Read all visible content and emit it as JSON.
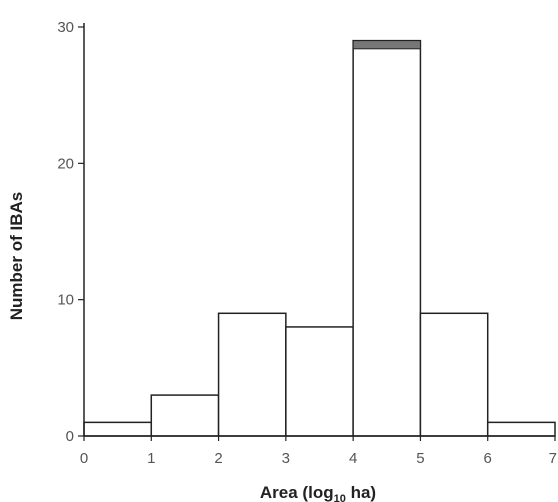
{
  "chart_data": {
    "type": "bar",
    "histogram": true,
    "bin_edges": [
      0,
      1,
      2,
      3,
      4,
      5,
      6,
      7
    ],
    "values": [
      1,
      3,
      9,
      8,
      29,
      9,
      1
    ],
    "stacked_top": {
      "bin": 4,
      "value": 0.6
    },
    "xlabel": {
      "prefix": "Area (log",
      "sub": "10",
      "suffix": " ha)"
    },
    "ylabel": "Number of IBAs",
    "xlim": [
      0,
      7
    ],
    "ylim": [
      0,
      30
    ],
    "xticks": [
      "0",
      "1",
      "2",
      "3",
      "4",
      "5",
      "6",
      "7"
    ],
    "yticks": [
      "0",
      "10",
      "20",
      "30"
    ],
    "grid": false
  }
}
